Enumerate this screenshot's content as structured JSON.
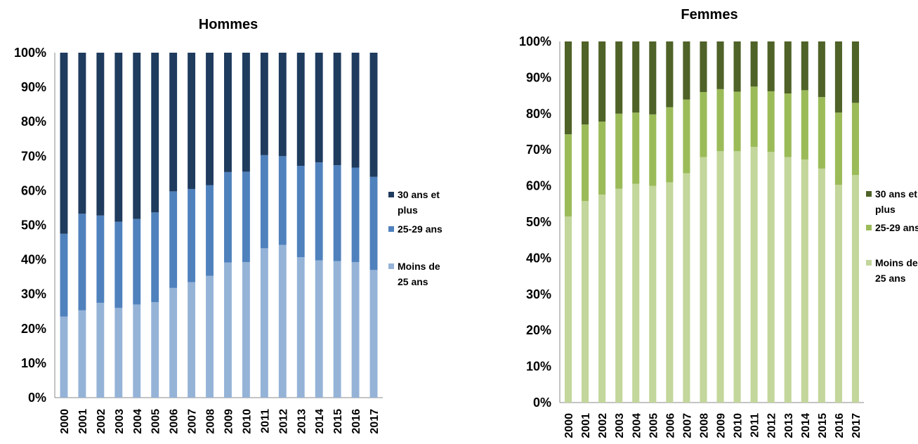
{
  "chart_data": [
    {
      "type": "bar",
      "stacked": true,
      "title": "Hommes",
      "ylim": [
        0,
        100
      ],
      "yticks": [
        "0%",
        "10%",
        "20%",
        "30%",
        "40%",
        "50%",
        "60%",
        "70%",
        "80%",
        "90%",
        "100%"
      ],
      "categories": [
        "2000",
        "2001",
        "2002",
        "2003",
        "2004",
        "2005",
        "2006",
        "2007",
        "2008",
        "2009",
        "2010",
        "2011",
        "2012",
        "2013",
        "2014",
        "2015",
        "2016",
        "2017"
      ],
      "legend_position": "right",
      "series": [
        {
          "name": "Moins de 25 ans",
          "legend_lines": [
            "Moins de",
            "25 ans"
          ],
          "color": "#95b3d7",
          "values": [
            23.5,
            25.3,
            27.5,
            26,
            27,
            27.7,
            31.8,
            33.5,
            35.3,
            39.2,
            39.3,
            43.3,
            44.3,
            40.7,
            39.8,
            39.6,
            39.3,
            37
          ]
        },
        {
          "name": "25-29 ans",
          "legend_lines": [
            "25-29 ans"
          ],
          "color": "#4f81bd",
          "values": [
            24,
            28,
            25.3,
            25,
            24.8,
            26,
            28,
            27,
            26.3,
            26.2,
            26.2,
            27,
            25.7,
            26.5,
            28.4,
            27.8,
            27.4,
            27
          ]
        },
        {
          "name": "30 ans et plus",
          "legend_lines": [
            "30 ans et",
            "plus"
          ],
          "color": "#1f3b5e",
          "values": [
            52.5,
            46.7,
            47.2,
            49,
            48.2,
            46.3,
            40.2,
            39.5,
            38.4,
            34.6,
            34.5,
            29.7,
            30,
            32.8,
            31.8,
            32.6,
            33.3,
            36
          ]
        }
      ]
    },
    {
      "type": "bar",
      "stacked": true,
      "title": "Femmes",
      "ylim": [
        0,
        100
      ],
      "yticks": [
        "0%",
        "10%",
        "20%",
        "30%",
        "40%",
        "50%",
        "60%",
        "70%",
        "80%",
        "90%",
        "100%"
      ],
      "categories": [
        "2000",
        "2001",
        "2002",
        "2003",
        "2004",
        "2005",
        "2006",
        "2007",
        "2008",
        "2009",
        "2010",
        "2011",
        "2012",
        "2013",
        "2014",
        "2015",
        "2016",
        "2017"
      ],
      "legend_position": "right",
      "series": [
        {
          "name": "Moins de 25 ans",
          "legend_lines": [
            "Moins de",
            "25 ans"
          ],
          "color": "#c3d69b",
          "values": [
            51.5,
            55.8,
            57.6,
            59.2,
            60.6,
            60,
            61,
            63.5,
            68,
            69.6,
            69.6,
            70.8,
            69.4,
            68,
            67.3,
            64.8,
            60.3,
            63
          ]
        },
        {
          "name": "25-29 ans",
          "legend_lines": [
            "25-29 ans"
          ],
          "color": "#9bbb59",
          "values": [
            22.8,
            21.2,
            20.2,
            20.8,
            19.7,
            19.8,
            20.8,
            20.4,
            18,
            17.2,
            16.5,
            16.7,
            16.8,
            17.6,
            19.2,
            19.8,
            20,
            20
          ]
        },
        {
          "name": "30 ans et plus",
          "legend_lines": [
            "30 ans et",
            "plus"
          ],
          "color": "#4f6228",
          "values": [
            25.7,
            23,
            22.2,
            20,
            19.7,
            20.2,
            18.2,
            16.1,
            14,
            13.2,
            13.9,
            12.5,
            13.8,
            14.4,
            13.5,
            15.4,
            19.7,
            17
          ]
        }
      ]
    }
  ]
}
